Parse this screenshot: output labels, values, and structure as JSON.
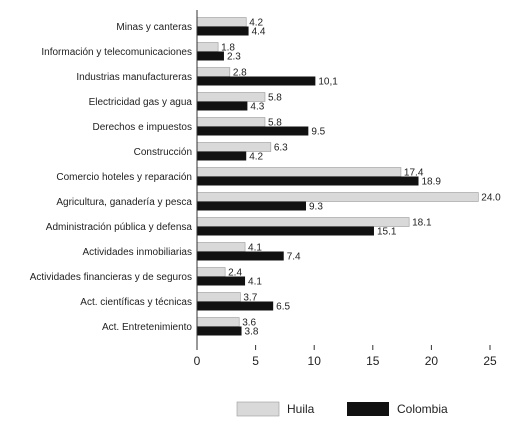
{
  "chart_data": {
    "type": "bar",
    "orientation": "horizontal",
    "categories": [
      "Minas y canteras",
      "Información y telecomunicaciones",
      "Industrias manufactureras",
      "Electricidad gas y agua",
      "Derechos e impuestos",
      "Construcción",
      "Comercio hoteles y reparación",
      "Agricultura, ganadería y pesca",
      "Administración pública y defensa",
      "Actividades inmobiliarias",
      "Actividades financieras y de seguros",
      "Act. científicas y técnicas",
      "Act. Entretenimiento"
    ],
    "series": [
      {
        "name": "Huila",
        "color": "#d9d9d9",
        "values": [
          4.2,
          1.8,
          2.8,
          5.8,
          5.8,
          6.3,
          17.4,
          24.0,
          18.1,
          4.1,
          2.4,
          3.7,
          3.6
        ],
        "labels": [
          "4.2",
          "1.8",
          "2.8",
          "5.8",
          "5.8",
          "6.3",
          "17.4",
          "24.0",
          "18.1",
          "4.1",
          "2.4",
          "3.7",
          "3.6"
        ]
      },
      {
        "name": "Colombia",
        "color": "#111111",
        "values": [
          4.4,
          2.3,
          10.1,
          4.3,
          9.5,
          4.2,
          18.9,
          9.3,
          15.1,
          7.4,
          4.1,
          6.5,
          3.8
        ],
        "labels": [
          "4.4",
          "2.3",
          "10,1",
          "4.3",
          "9.5",
          "4.2",
          "18.9",
          "9.3",
          "15.1",
          "7.4",
          "4.1",
          "6.5",
          "3.8"
        ]
      }
    ],
    "xlim": [
      0,
      25
    ],
    "xticks": [
      0,
      5,
      10,
      15,
      20,
      25
    ],
    "grid": false,
    "legend_position": "bottom-center",
    "title": "",
    "xlabel": "",
    "ylabel": ""
  }
}
